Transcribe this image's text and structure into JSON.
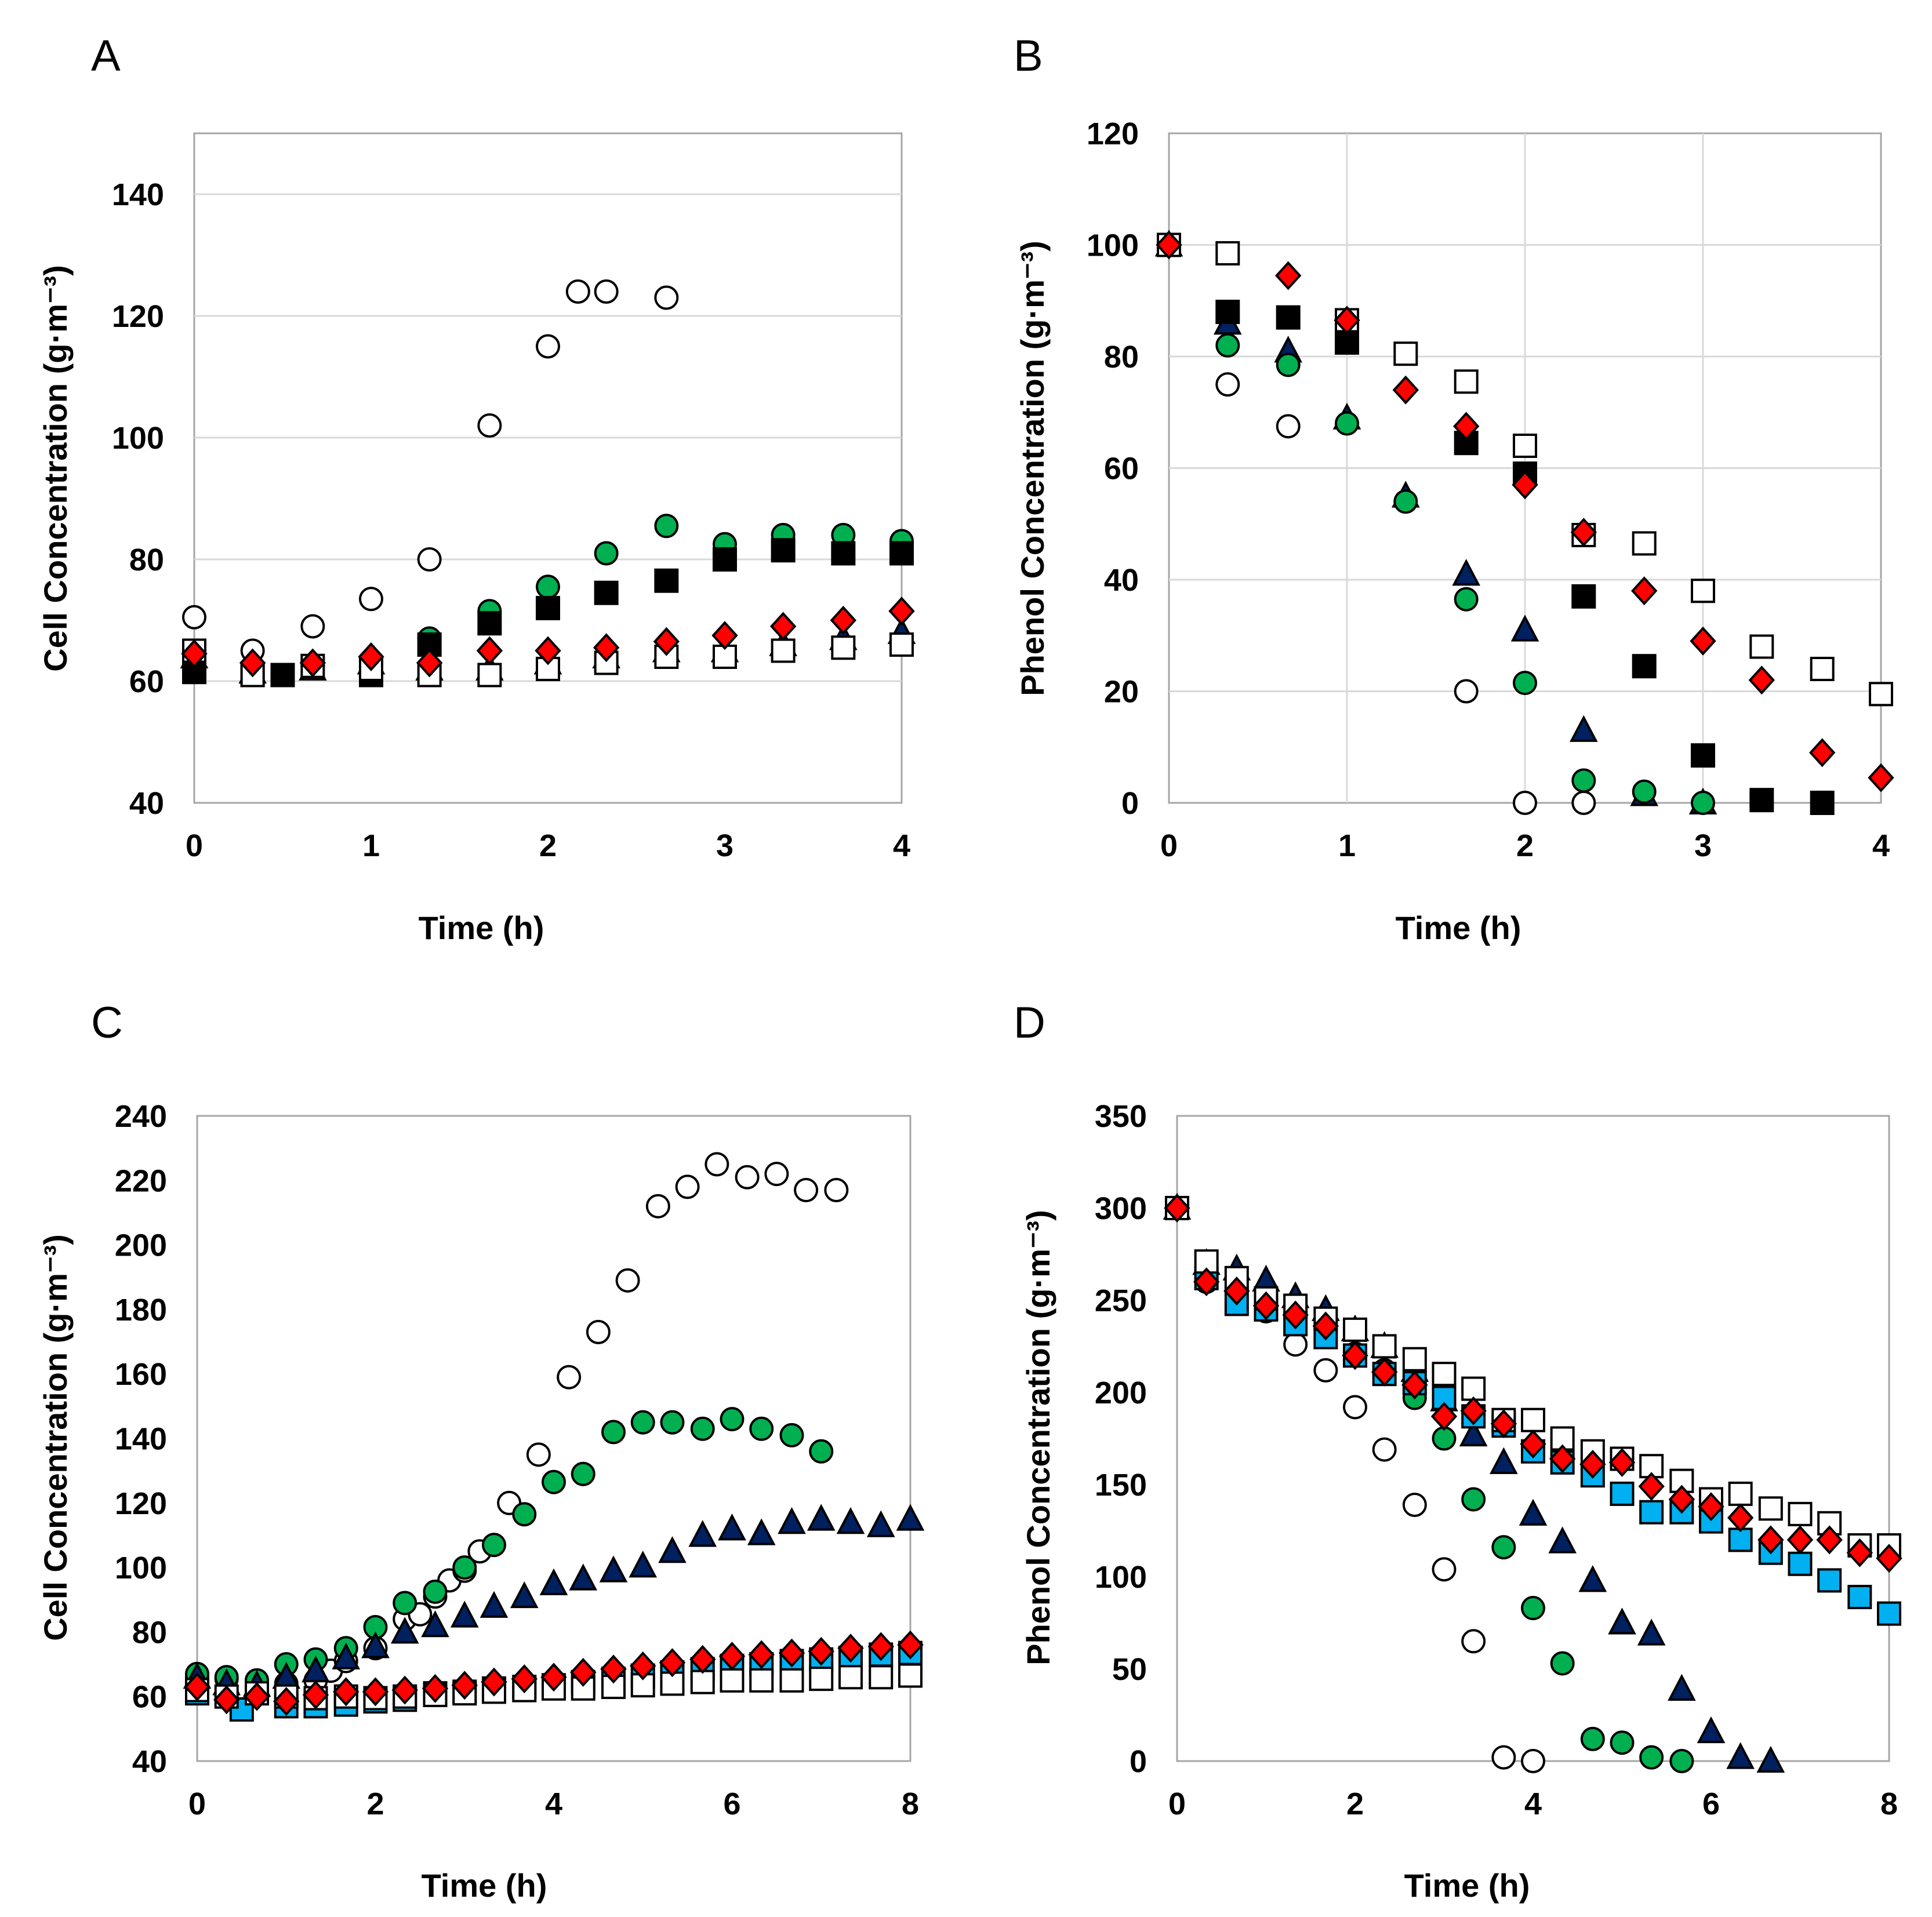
{
  "chart_data": [
    {
      "panel": "A",
      "type": "scatter",
      "xlabel": "Time (h)",
      "ylabel": "Cell Concentration (g·m⁻³)",
      "xlim": [
        0,
        4
      ],
      "ylim": [
        40,
        150
      ],
      "xticks": [
        0,
        1,
        2,
        3,
        4
      ],
      "yticks": [
        40,
        60,
        80,
        100,
        120,
        140
      ],
      "grid": "horizontal",
      "series": [
        {
          "name": "open circle",
          "marker": "circle",
          "fill": "#ffffff",
          "x": [
            0,
            0.33,
            0.67,
            1,
            1.33,
            1.67,
            2,
            2.17,
            2.33,
            2.67
          ],
          "y": [
            70.5,
            65,
            69,
            73.5,
            80,
            102,
            115,
            124,
            124,
            123
          ]
        },
        {
          "name": "green circle",
          "marker": "circle",
          "fill": "#00b050",
          "x": [
            0,
            0.33,
            0.67,
            1,
            1.33,
            1.67,
            2,
            2.33,
            2.67,
            3,
            3.33,
            3.67,
            4
          ],
          "y": [
            64,
            62,
            62.5,
            63,
            67,
            71.5,
            75.5,
            81,
            85.5,
            82.5,
            84,
            84,
            83
          ]
        },
        {
          "name": "blue triangle",
          "marker": "triangle",
          "fill": "#002060",
          "x": [
            0,
            0.33,
            0.67,
            1,
            1.33,
            1.67,
            2,
            2.33,
            2.67,
            3,
            3.33,
            3.67,
            4
          ],
          "y": [
            64,
            61.5,
            62,
            63,
            62,
            62,
            63,
            64,
            65,
            65,
            66,
            67,
            68
          ]
        },
        {
          "name": "black square",
          "marker": "square",
          "fill": "#000000",
          "x": [
            0,
            0.33,
            0.5,
            1,
            1.33,
            1.67,
            2,
            2.33,
            2.67,
            3,
            3.33,
            3.67,
            4
          ],
          "y": [
            61.5,
            61,
            61,
            61,
            66,
            69.5,
            72,
            74.5,
            76.5,
            80,
            81.5,
            81,
            81
          ]
        },
        {
          "name": "open square",
          "marker": "square",
          "fill": "#ffffff",
          "x": [
            0,
            0.33,
            0.67,
            1,
            1.33,
            1.67,
            2,
            2.33,
            2.67,
            3,
            3.33,
            3.67,
            4
          ],
          "y": [
            65,
            61,
            62.5,
            62,
            61,
            61,
            62,
            63,
            64,
            64,
            65,
            65.5,
            66
          ]
        },
        {
          "name": "red diamond",
          "marker": "diamond",
          "fill": "#ff0000",
          "x": [
            0,
            0.33,
            0.67,
            1,
            1.33,
            1.67,
            2,
            2.33,
            2.67,
            3,
            3.33,
            3.67,
            4
          ],
          "y": [
            64.5,
            63,
            63,
            64,
            63,
            65,
            65,
            65.5,
            66.5,
            67.5,
            69,
            70,
            71.5
          ]
        }
      ]
    },
    {
      "panel": "B",
      "type": "scatter",
      "xlabel": "Time (h)",
      "ylabel": "Phenol Concentration (g·m⁻³)",
      "xlim": [
        0,
        4
      ],
      "ylim": [
        0,
        120
      ],
      "xticks": [
        0,
        1,
        2,
        3,
        4
      ],
      "yticks": [
        0,
        20,
        40,
        60,
        80,
        100,
        120
      ],
      "grid": "both",
      "series": [
        {
          "name": "open circle",
          "marker": "circle",
          "fill": "#ffffff",
          "x": [
            0,
            0.33,
            0.67,
            1.67,
            2,
            2.33
          ],
          "y": [
            100,
            75,
            67.5,
            20,
            0,
            0
          ]
        },
        {
          "name": "blue triangle",
          "marker": "triangle",
          "fill": "#002060",
          "x": [
            0,
            0.33,
            0.67,
            1,
            1.33,
            1.67,
            2,
            2.33,
            2.67,
            3
          ],
          "y": [
            100,
            86,
            81,
            69,
            55,
            41,
            31,
            13,
            1.5,
            0
          ]
        },
        {
          "name": "green circle",
          "marker": "circle",
          "fill": "#00b050",
          "x": [
            0,
            0.33,
            0.67,
            1,
            1.33,
            1.67,
            2,
            2.33,
            2.67,
            3
          ],
          "y": [
            100,
            82,
            78.5,
            68,
            54,
            36.5,
            21.5,
            4,
            2,
            0
          ]
        },
        {
          "name": "black square",
          "marker": "square",
          "fill": "#000000",
          "x": [
            0,
            0.33,
            0.67,
            1,
            1.67,
            2,
            2.33,
            2.67,
            3,
            3.33,
            3.67
          ],
          "y": [
            100,
            88,
            87,
            82.5,
            64.5,
            59,
            37,
            24.5,
            8.5,
            0.5,
            0
          ]
        },
        {
          "name": "open square",
          "marker": "square",
          "fill": "#ffffff",
          "x": [
            0,
            0.33,
            1,
            1.33,
            1.67,
            2,
            2.33,
            2.67,
            3,
            3.33,
            3.67,
            4
          ],
          "y": [
            100,
            98.5,
            86.5,
            80.5,
            75.5,
            64,
            48,
            46.5,
            38,
            28,
            24,
            19.5
          ]
        },
        {
          "name": "red diamond",
          "marker": "diamond",
          "fill": "#ff0000",
          "x": [
            0,
            0.67,
            1,
            1.33,
            1.67,
            2,
            2.33,
            2.67,
            3,
            3.33,
            3.67,
            4
          ],
          "y": [
            100,
            94.5,
            86.5,
            74,
            67.5,
            57,
            48.5,
            38,
            29,
            22,
            9,
            4.5
          ]
        }
      ]
    },
    {
      "panel": "C",
      "type": "scatter",
      "xlabel": "Time (h)",
      "ylabel": "Cell Concentration (g·m⁻³)",
      "xlim": [
        0,
        8
      ],
      "ylim": [
        40,
        240
      ],
      "xticks": [
        0,
        2,
        4,
        6,
        8
      ],
      "yticks": [
        40,
        60,
        80,
        100,
        120,
        140,
        160,
        180,
        200,
        220,
        240
      ],
      "grid": "none",
      "series": [
        {
          "name": "open circle",
          "marker": "circle",
          "fill": "#ffffff",
          "x": [
            0,
            0.33,
            0.67,
            1,
            1.33,
            1.5,
            1.67,
            2,
            2.33,
            2.5,
            2.67,
            2.83,
            3,
            3.17,
            3.5,
            3.83,
            4.17,
            4.5,
            4.83,
            5.17,
            5.5,
            5.83,
            6.17,
            6.5,
            6.83,
            7.17
          ],
          "y": [
            66,
            65.5,
            65,
            64,
            65,
            68,
            71,
            75,
            84,
            85.5,
            91,
            96,
            99,
            105,
            120,
            135,
            159,
            173,
            189,
            212,
            218,
            225,
            221,
            222,
            217,
            217
          ]
        },
        {
          "name": "green circle",
          "marker": "circle",
          "fill": "#00b050",
          "x": [
            0,
            0.33,
            0.67,
            1,
            1.33,
            1.67,
            2,
            2.33,
            2.67,
            3,
            3.33,
            3.67,
            4,
            4.33,
            4.67,
            5,
            5.33,
            5.67,
            6,
            6.33,
            6.67,
            7
          ],
          "y": [
            67,
            66,
            65,
            70,
            71.5,
            75,
            81.5,
            89,
            92.5,
            100,
            107,
            116.5,
            126.5,
            129,
            142,
            145,
            145,
            143,
            146,
            143,
            141,
            136
          ]
        },
        {
          "name": "blue triangle",
          "marker": "triangle",
          "fill": "#002060",
          "x": [
            0,
            0.33,
            0.67,
            1,
            1.33,
            1.67,
            2,
            2.33,
            2.67,
            3,
            3.33,
            3.67,
            4,
            4.33,
            4.67,
            5,
            5.33,
            5.67,
            6,
            6.33,
            6.67,
            7,
            7.33,
            7.67,
            8
          ],
          "y": [
            66,
            64,
            63.5,
            66,
            68,
            72,
            75.5,
            80,
            82,
            85,
            88,
            91,
            95,
            96.5,
            99,
            100.5,
            105,
            110,
            112,
            110.5,
            114,
            115,
            114,
            113,
            115
          ]
        },
        {
          "name": "blue square",
          "marker": "square",
          "fill": "#00b0f0",
          "x": [
            0,
            0.5,
            1,
            1.33,
            1.67,
            2,
            2.33,
            2.67,
            3,
            3.33,
            3.67,
            4,
            4.33,
            4.67,
            5,
            5.33,
            5.67,
            6,
            6.33,
            6.67,
            7,
            7.33,
            7.67,
            8
          ],
          "y": [
            61,
            56,
            57,
            57,
            57.5,
            58.5,
            59,
            61,
            61.5,
            62.5,
            63,
            63.5,
            64.5,
            65.5,
            66.5,
            67.5,
            68.5,
            69.5,
            70,
            71,
            71.5,
            72,
            73,
            73.5
          ]
        },
        {
          "name": "open square",
          "marker": "square",
          "fill": "#ffffff",
          "x": [
            0,
            0.33,
            0.67,
            1,
            1.33,
            1.67,
            2,
            2.33,
            2.67,
            3,
            3.33,
            3.67,
            4,
            4.33,
            4.67,
            5,
            5.33,
            5.67,
            6,
            6.33,
            6.67,
            7,
            7.33,
            7.67,
            8
          ],
          "y": [
            62,
            60,
            61,
            60,
            59.5,
            60,
            59.5,
            60,
            60.5,
            61,
            61.5,
            62,
            62.5,
            62.5,
            63,
            63.5,
            64,
            64.5,
            65,
            65,
            65,
            65.5,
            66,
            66,
            66.5
          ]
        },
        {
          "name": "red diamond",
          "marker": "diamond",
          "fill": "#ff0000",
          "x": [
            0,
            0.33,
            0.67,
            1,
            1.33,
            1.67,
            2,
            2.33,
            2.67,
            3,
            3.33,
            3.67,
            4,
            4.33,
            4.67,
            5,
            5.33,
            5.67,
            6,
            6.33,
            6.67,
            7,
            7.33,
            7.67,
            8
          ],
          "y": [
            63,
            59,
            60,
            58.5,
            60.5,
            61.5,
            61.5,
            62,
            62.5,
            63.5,
            64.5,
            65.5,
            66,
            67.5,
            68.5,
            69.5,
            70.5,
            71.5,
            72.5,
            73,
            73.5,
            74,
            75,
            75.5,
            76
          ]
        }
      ]
    },
    {
      "panel": "D",
      "type": "scatter",
      "xlabel": "Time (h)",
      "ylabel": "Phenol Concentration (g·m⁻³)",
      "xlim": [
        0,
        8
      ],
      "ylim": [
        0,
        350
      ],
      "xticks": [
        0,
        2,
        4,
        6,
        8
      ],
      "yticks": [
        0,
        50,
        100,
        150,
        200,
        250,
        300,
        350
      ],
      "grid": "none",
      "series": [
        {
          "name": "open circle",
          "marker": "circle",
          "fill": "#ffffff",
          "x": [
            0,
            0.33,
            0.67,
            1,
            1.33,
            1.67,
            2,
            2.33,
            2.67,
            3,
            3.33,
            3.67,
            4
          ],
          "y": [
            300,
            262,
            255,
            244,
            226,
            212,
            192,
            169,
            139,
            104,
            65,
            2,
            0
          ]
        },
        {
          "name": "green circle",
          "marker": "circle",
          "fill": "#00b050",
          "x": [
            0,
            0.33,
            0.67,
            1,
            1.33,
            1.67,
            2,
            2.33,
            2.67,
            3,
            3.33,
            3.67,
            4,
            4.33,
            4.67,
            5,
            5.33,
            5.67
          ],
          "y": [
            300,
            260,
            257,
            250,
            240,
            235,
            221,
            212,
            197,
            175,
            142,
            116,
            83,
            53,
            12,
            10,
            2,
            0
          ]
        },
        {
          "name": "blue triangle",
          "marker": "triangle",
          "fill": "#002060",
          "x": [
            0,
            0.33,
            0.67,
            1,
            1.33,
            1.67,
            2,
            2.33,
            2.67,
            3,
            3.33,
            3.67,
            4,
            4.33,
            4.67,
            5,
            5.33,
            5.67,
            6,
            6.33,
            6.67
          ],
          "y": [
            300,
            270,
            267,
            261,
            252,
            245,
            234,
            225,
            212,
            196,
            177,
            162,
            134,
            119,
            98,
            75,
            69,
            39,
            16,
            2,
            0
          ]
        },
        {
          "name": "blue square",
          "marker": "square",
          "fill": "#00b0f0",
          "x": [
            0,
            0.33,
            0.67,
            1,
            1.33,
            1.67,
            2,
            2.33,
            2.67,
            3,
            3.33,
            3.67,
            4,
            4.33,
            4.67,
            5,
            5.33,
            5.67,
            6,
            6.33,
            6.67,
            7,
            7.33,
            7.67,
            8
          ],
          "y": [
            300,
            262,
            248,
            245,
            237,
            230,
            220,
            210,
            205,
            197,
            187,
            182,
            168,
            162,
            155,
            145,
            135,
            135,
            130,
            120,
            113,
            107,
            98,
            89,
            80
          ]
        },
        {
          "name": "open square",
          "marker": "square",
          "fill": "#ffffff",
          "x": [
            0,
            0.33,
            0.67,
            1,
            1.33,
            1.67,
            2,
            2.33,
            2.67,
            3,
            3.33,
            3.67,
            4,
            4.33,
            4.67,
            5,
            5.33,
            5.67,
            6,
            6.33,
            6.67,
            7,
            7.33,
            7.67,
            8
          ],
          "y": [
            300,
            271,
            262,
            251,
            247,
            240,
            234,
            225,
            218,
            210,
            202,
            185,
            185,
            175,
            168,
            164,
            160,
            152,
            142,
            145,
            137,
            134,
            129,
            117,
            117
          ]
        },
        {
          "name": "red diamond",
          "marker": "diamond",
          "fill": "#ff0000",
          "x": [
            0,
            0.33,
            0.67,
            1,
            1.33,
            1.67,
            2,
            2.33,
            2.67,
            3,
            3.33,
            3.67,
            4,
            4.33,
            4.67,
            5,
            5.33,
            5.67,
            6,
            6.33,
            6.67,
            7,
            7.33,
            7.67,
            8
          ],
          "y": [
            300,
            260,
            255,
            247,
            242,
            236,
            220,
            211,
            204,
            187,
            190,
            183,
            172,
            164,
            161,
            162,
            149,
            142,
            138,
            132,
            120,
            120,
            120,
            113,
            110
          ]
        }
      ]
    }
  ]
}
